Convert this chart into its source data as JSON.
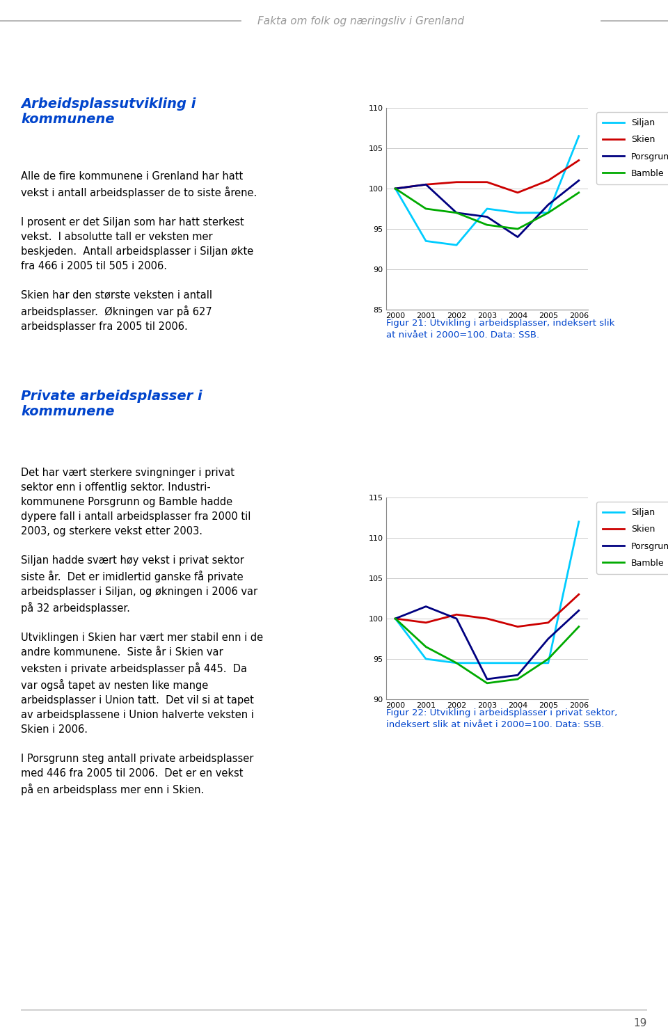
{
  "page_title": "Fakta om folk og næringsliv i Grenland",
  "page_number": "19",
  "background_color": "#ffffff",
  "section1_title_line1": "Arbeidsplassutvikling i",
  "section1_title_line2": "kommunene",
  "section1_body": "Alle de fire kommunene i Grenland har hatt\nvekst i antall arbeidsplasser de to siste årene.\n\nI prosent er det Siljan som har hatt sterkest\nvekst.  I absolutte tall er veksten mer\nbeskjeden.  Antall arbeidsplasser i Siljan økte\nfra 466 i 2005 til 505 i 2006.\n\nSkien har den største veksten i antall\narbeidsplasser.  Økningen var på 627\narbeidsplasser fra 2005 til 2006.",
  "fig1_caption": "Figur 21: Utvikling i arbeidsplasser, indeksert slik\nat nivået i 2000=100. Data: SSB.",
  "fig1_years": [
    2000,
    2001,
    2002,
    2003,
    2004,
    2005,
    2006
  ],
  "fig1_ylim": [
    85,
    110
  ],
  "fig1_yticks": [
    85,
    90,
    95,
    100,
    105,
    110
  ],
  "fig1_siljan": [
    100,
    93.5,
    93.0,
    97.5,
    97.0,
    97.0,
    106.5
  ],
  "fig1_skien": [
    100,
    100.5,
    100.8,
    100.8,
    99.5,
    101.0,
    103.5
  ],
  "fig1_porsgrunn": [
    100,
    100.5,
    97.0,
    96.5,
    94.0,
    98.0,
    101.0
  ],
  "fig1_bamble": [
    100,
    97.5,
    97.0,
    95.5,
    95.0,
    97.0,
    99.5
  ],
  "section2_title_line1": "Private arbeidsplasser i",
  "section2_title_line2": "kommunene",
  "section2_body": "Det har vært sterkere svingninger i privat\nsektor enn i offentlig sektor. Industri-\nkommunene Porsgrunn og Bamble hadde\ndypere fall i antall arbeidsplasser fra 2000 til\n2003, og sterkere vekst etter 2003.\n\nSiljan hadde svært høy vekst i privat sektor\nsiste år.  Det er imidlertid ganske få private\narbeidsplasser i Siljan, og økningen i 2006 var\npå 32 arbeidsplasser.\n\nUtviklingen i Skien har vært mer stabil enn i de\nandre kommunene.  Siste år i Skien var\nveksten i private arbeidsplasser på 445.  Da\nvar også tapet av nesten like mange\narbeidsplasser i Union tatt.  Det vil si at tapet\nav arbeidsplassene i Union halverte veksten i\nSkien i 2006.\n\nI Porsgrunn steg antall private arbeidsplasser\nmed 446 fra 2005 til 2006.  Det er en vekst\npå en arbeidsplass mer enn i Skien.",
  "fig2_caption": "Figur 22: Utvikling i arbeidsplasser i privat sektor,\nindeksert slik at nivået i 2000=100. Data: SSB.",
  "fig2_years": [
    2000,
    2001,
    2002,
    2003,
    2004,
    2005,
    2006
  ],
  "fig2_ylim": [
    90,
    115
  ],
  "fig2_yticks": [
    90,
    95,
    100,
    105,
    110,
    115
  ],
  "fig2_siljan": [
    100,
    95.0,
    94.5,
    94.5,
    94.5,
    94.5,
    112.0
  ],
  "fig2_skien": [
    100,
    99.5,
    100.5,
    100.0,
    99.0,
    99.5,
    103.0
  ],
  "fig2_porsgrunn": [
    100,
    101.5,
    100.0,
    92.5,
    93.0,
    97.5,
    101.0
  ],
  "fig2_bamble": [
    100,
    96.5,
    94.5,
    92.0,
    92.5,
    95.0,
    99.0
  ],
  "color_siljan": "#00ccff",
  "color_skien": "#cc0000",
  "color_porsgrunn": "#000080",
  "color_bamble": "#00aa00",
  "header_line_color": "#aaaaaa",
  "header_text_color": "#999999",
  "title_color": "#0044cc",
  "body_text_color": "#000000",
  "caption_color": "#0044cc",
  "footer_line_color": "#aaaaaa",
  "page_num_color": "#555555"
}
